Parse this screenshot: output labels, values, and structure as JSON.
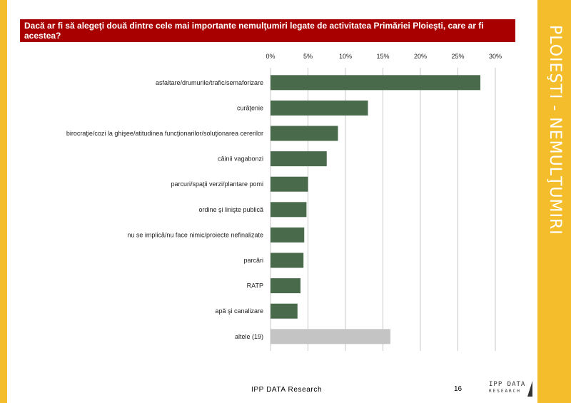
{
  "header": {
    "question": "Dacă ar fi să alegeţi două dintre cele mai importante nemulţumiri legate de activitatea Primăriei Ploieşti, care ar fi acestea?"
  },
  "side_title": "PLOIEŞTI - NEMULŢUMIRI",
  "footer": {
    "company": "IPP DATA Research",
    "page_number": "16",
    "logo_top": "IPP DATA",
    "logo_bottom": "RESEARCH"
  },
  "colors": {
    "bar": "#4a6a4c",
    "bar_other": "#c4c4c4",
    "header_bg": "#a80000",
    "accent": "#f3bd2c",
    "grid": "#c8c8c8"
  },
  "chart_data": {
    "type": "bar",
    "orientation": "horizontal",
    "xlim": [
      0,
      30
    ],
    "ticks": [
      "0%",
      "5%",
      "10%",
      "15%",
      "20%",
      "25%",
      "30%"
    ],
    "tick_values": [
      0,
      5,
      10,
      15,
      20,
      25,
      30
    ],
    "grid": true,
    "categories": [
      "asfaltare/drumurile/trafic/semaforizare",
      "curăţenie",
      "birocraţie/cozi la ghişee/atitudinea funcţionarilor/soluţionarea cererilor",
      "câinii vagabonzi",
      "parcuri/spaţii verzi/plantare pomi",
      "ordine şi linişte publică",
      "nu se implică/nu face nimic/proiecte nefinalizate",
      "parcări",
      "RATP",
      "apă şi canalizare",
      "altele (19)"
    ],
    "values": [
      28.0,
      13.0,
      9.0,
      7.5,
      5.0,
      4.8,
      4.5,
      4.4,
      4.0,
      3.6,
      16.0
    ]
  }
}
